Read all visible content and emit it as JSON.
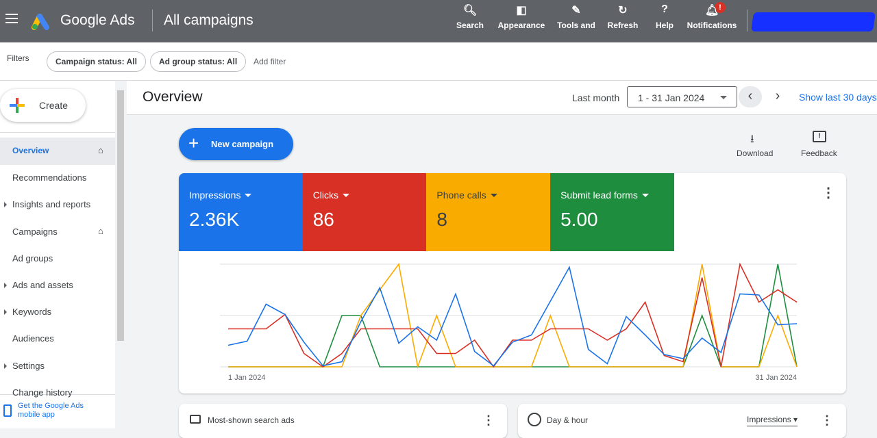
{
  "header": {
    "product": "Google Ads",
    "section": "All campaigns",
    "nav": [
      "Search",
      "Appearance",
      "Tools and",
      "Refresh",
      "Help",
      "Notifications"
    ],
    "badge": "!"
  },
  "filters": {
    "label": "Filters",
    "chips": [
      "Campaign status: All",
      "Ad group status: All"
    ],
    "add": "Add filter"
  },
  "sidebar": {
    "create": "Create",
    "items": [
      "Overview",
      "Recommendations",
      "Insights and reports",
      "Campaigns",
      "Ad groups",
      "Ads and assets",
      "Keywords",
      "Audiences",
      "Settings",
      "Change history"
    ],
    "app_link": "Get the Google Ads mobile app"
  },
  "overview": {
    "title": "Overview",
    "period_label": "Last month",
    "date_range": "1 - 31 Jan 2024",
    "show_last": "Show last 30 days",
    "new_campaign": "New campaign",
    "download": "Download",
    "feedback": "Feedback"
  },
  "cards": {
    "ads": "Most-shown search ads",
    "day_hour": "Day & hour",
    "metric": "Impressions"
  },
  "chart_data": {
    "type": "line",
    "ylim": [
      0,
      1
    ],
    "categories": [
      "1 Jan 2024",
      null,
      null,
      null,
      null,
      null,
      null,
      null,
      null,
      null,
      null,
      null,
      null,
      null,
      null,
      null,
      null,
      null,
      null,
      null,
      null,
      null,
      null,
      null,
      null,
      null,
      null,
      null,
      null,
      null,
      "31 Jan 2024"
    ],
    "series": [
      {
        "name": "Impressions",
        "total": "2.36K",
        "color": "#1a73e8",
        "values": [
          0.21,
          0.25,
          0.61,
          0.51,
          0.24,
          0.01,
          0.05,
          0.44,
          0.77,
          0.23,
          0.39,
          0.26,
          0.71,
          0.15,
          0.01,
          0.24,
          0.31,
          0.64,
          0.97,
          0.17,
          0.03,
          0.49,
          0.31,
          0.12,
          0.08,
          0.28,
          0.14,
          0.71,
          0.7,
          0.41,
          0.42
        ]
      },
      {
        "name": "Clicks",
        "total": "86",
        "color": "#d93025",
        "values": [
          0.37,
          0.37,
          0.37,
          0.51,
          0.13,
          0,
          0.13,
          0.37,
          0.37,
          0.37,
          0.37,
          0.13,
          0.13,
          0.26,
          0,
          0.26,
          0.26,
          0.37,
          0.37,
          0.37,
          0.26,
          0.37,
          0.63,
          0.11,
          0.05,
          0.87,
          0,
          1,
          0.63,
          0.75,
          0.63
        ]
      },
      {
        "name": "Phone calls",
        "total": "8",
        "color": "#f9ab00",
        "values": [
          0,
          0,
          0,
          0,
          0,
          0,
          0,
          0.5,
          0.75,
          1,
          0,
          0.5,
          0,
          0,
          0,
          0,
          0,
          0.5,
          0,
          0,
          0,
          0,
          0,
          0,
          0,
          1,
          0,
          0,
          0,
          0.5,
          0
        ]
      },
      {
        "name": "Submit lead forms",
        "total": "5.00",
        "color": "#1e8e3e",
        "values": [
          0,
          0,
          0,
          0,
          0,
          0,
          0.5,
          0.5,
          0,
          0,
          0,
          0,
          0,
          0,
          0,
          0,
          0,
          0,
          0,
          0,
          0,
          0,
          0,
          0,
          0,
          0.5,
          0,
          0,
          0,
          1,
          0
        ]
      }
    ]
  }
}
